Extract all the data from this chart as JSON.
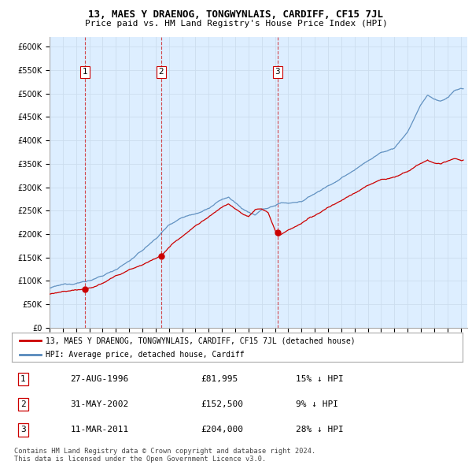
{
  "title": "13, MAES Y DRAENOG, TONGWYNLAIS, CARDIFF, CF15 7JL",
  "subtitle": "Price paid vs. HM Land Registry's House Price Index (HPI)",
  "ylabel_ticks": [
    "£0",
    "£50K",
    "£100K",
    "£150K",
    "£200K",
    "£250K",
    "£300K",
    "£350K",
    "£400K",
    "£450K",
    "£500K",
    "£550K",
    "£600K"
  ],
  "ytick_values": [
    0,
    50000,
    100000,
    150000,
    200000,
    250000,
    300000,
    350000,
    400000,
    450000,
    500000,
    550000,
    600000
  ],
  "xmin": 1994.0,
  "xmax": 2025.5,
  "ymin": 0,
  "ymax": 620000,
  "sale_dates": [
    1996.65,
    2002.41,
    2011.19
  ],
  "sale_prices": [
    81995,
    152500,
    204000
  ],
  "sale_labels": [
    "1",
    "2",
    "3"
  ],
  "legend_red": "13, MAES Y DRAENOG, TONGWYNLAIS, CARDIFF, CF15 7JL (detached house)",
  "legend_blue": "HPI: Average price, detached house, Cardiff",
  "table_rows": [
    [
      "1",
      "27-AUG-1996",
      "£81,995",
      "15% ↓ HPI"
    ],
    [
      "2",
      "31-MAY-2002",
      "£152,500",
      "9% ↓ HPI"
    ],
    [
      "3",
      "11-MAR-2011",
      "£204,000",
      "28% ↓ HPI"
    ]
  ],
  "footer": "Contains HM Land Registry data © Crown copyright and database right 2024.\nThis data is licensed under the Open Government Licence v3.0.",
  "red_color": "#cc0000",
  "blue_color": "#5588bb",
  "vline_color": "#cc0000",
  "grid_color": "#ccddee",
  "bg_color": "#e8f0f8",
  "chart_bg": "#ddeeff"
}
